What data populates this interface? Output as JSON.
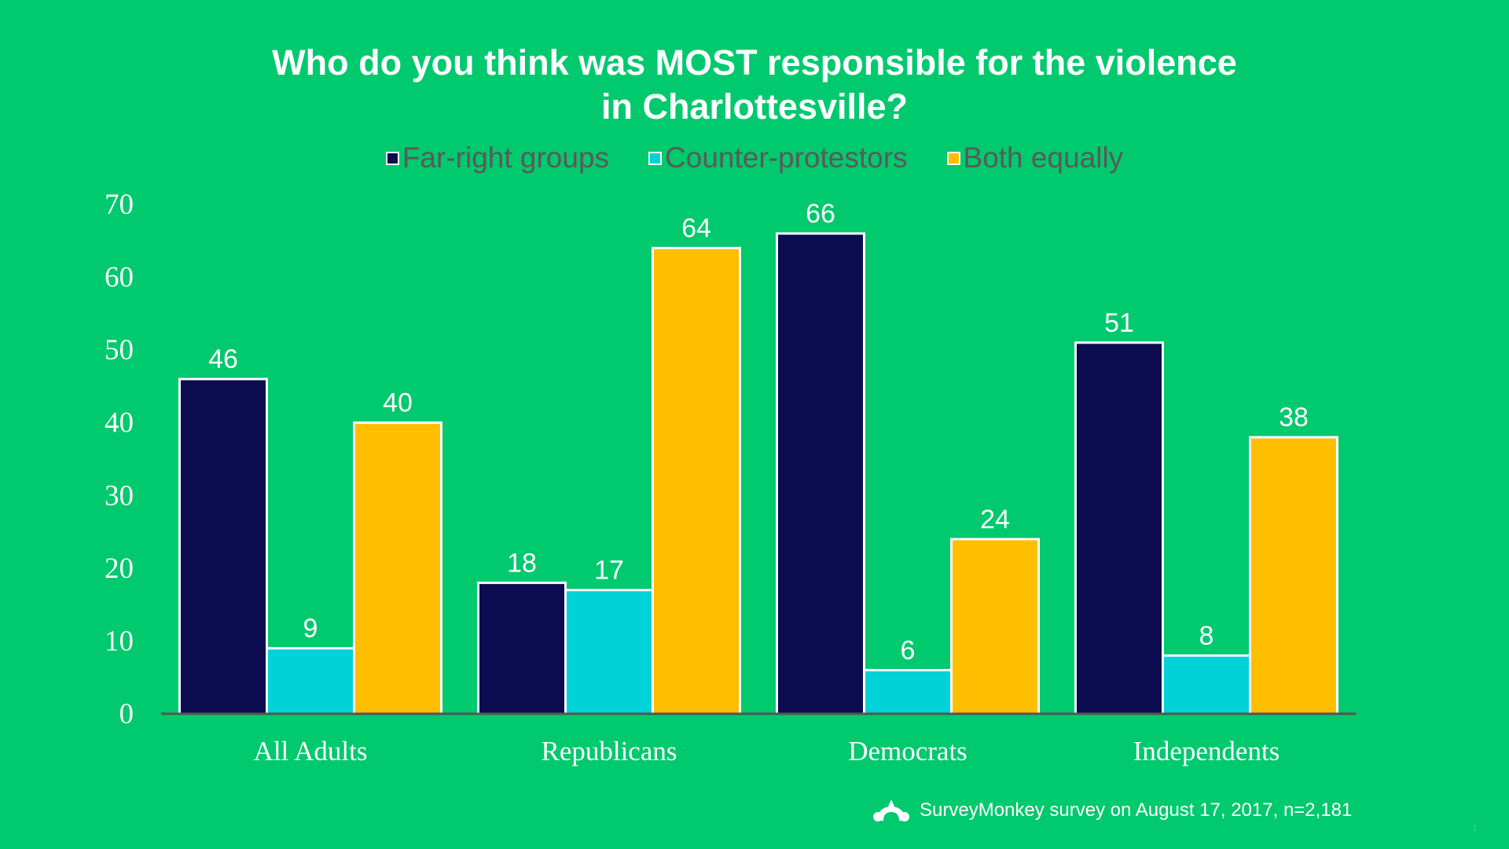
{
  "chart_data": {
    "type": "bar",
    "title": [
      "Who do you think was MOST responsible for the violence",
      "in Charlottesville?"
    ],
    "categories": [
      "All Adults",
      "Republicans",
      "Democrats",
      "Independents"
    ],
    "series": [
      {
        "name": "Far-right groups",
        "color": "#0d0b4f",
        "values": [
          46,
          18,
          66,
          51
        ]
      },
      {
        "name": "Counter-protestors",
        "color": "#00d2d8",
        "values": [
          9,
          17,
          6,
          8
        ]
      },
      {
        "name": "Both equally",
        "color": "#ffbe00",
        "values": [
          40,
          64,
          24,
          38
        ]
      }
    ],
    "ylim": [
      0,
      70
    ],
    "yticks": [
      0,
      10,
      20,
      30,
      40,
      50,
      60,
      70
    ],
    "legend_position": "top",
    "grid": false,
    "data_labels": true
  },
  "footer": {
    "source_text": "SurveyMonkey survey on August 17, 2017, n=2,181",
    "logo_icon": "surveymonkey-logo-icon",
    "page_number": "1"
  },
  "colors": {
    "background": "#00c96e",
    "axis": "#555555"
  }
}
